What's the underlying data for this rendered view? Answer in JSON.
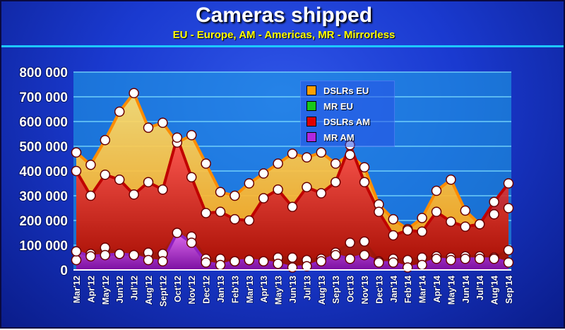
{
  "chart_data": {
    "type": "area",
    "title": "Cameras shipped",
    "subtitle": "EU - Europe, AM - Americas, MR - Mirrorless",
    "xlabel": "",
    "ylabel": "",
    "ylim": [
      0,
      800000
    ],
    "y_ticks": [
      0,
      100000,
      200000,
      300000,
      400000,
      500000,
      600000,
      700000,
      800000
    ],
    "y_tick_labels": [
      "0",
      "100 000",
      "200 000",
      "300 000",
      "400 000",
      "500 000",
      "600 000",
      "700 000",
      "800 000"
    ],
    "grid": true,
    "legend_position": "top-center",
    "categories": [
      "Mar'12",
      "Apr'12",
      "May'12",
      "Jun'12",
      "Jul'12",
      "Aug'12",
      "Sept'12",
      "Oct'12",
      "Nov'12",
      "Dec'12",
      "Jan'13",
      "Feb'13",
      "Mar'13",
      "Apr'13",
      "May'13",
      "Jun'13",
      "Jul'13",
      "Aug'13",
      "Sep'13",
      "Oct'13",
      "Nov'13",
      "Dec'13",
      "Jan'14",
      "Feb'14",
      "Mar'14",
      "Apr'14",
      "May'14",
      "Jun'14",
      "Jul'14",
      "Aug'14",
      "Sep'14"
    ],
    "series": [
      {
        "name": "DSLRs EU",
        "color": "#ffa000",
        "values": [
          475000,
          425000,
          525000,
          640000,
          715000,
          575000,
          595000,
          515000,
          545000,
          430000,
          315000,
          300000,
          350000,
          390000,
          430000,
          470000,
          455000,
          475000,
          430000,
          465000,
          415000,
          265000,
          205000,
          165000,
          210000,
          320000,
          365000,
          240000,
          185000,
          225000,
          250000
        ]
      },
      {
        "name": "MR EU",
        "color": "#18c818",
        "values": [
          40000,
          65000,
          90000,
          65000,
          60000,
          70000,
          65000,
          150000,
          135000,
          45000,
          45000,
          35000,
          40000,
          35000,
          50000,
          50000,
          40000,
          45000,
          70000,
          110000,
          115000,
          35000,
          45000,
          40000,
          50000,
          55000,
          50000,
          55000,
          55000,
          50000,
          80000
        ]
      },
      {
        "name": "DSLRs AM",
        "color": "#e00000",
        "values": [
          400000,
          300000,
          385000,
          365000,
          305000,
          355000,
          325000,
          535000,
          375000,
          230000,
          235000,
          205000,
          200000,
          290000,
          325000,
          255000,
          335000,
          310000,
          355000,
          505000,
          355000,
          235000,
          140000,
          160000,
          155000,
          235000,
          195000,
          175000,
          185000,
          275000,
          350000
        ]
      },
      {
        "name": "MR AM",
        "color": "#b028e0",
        "values": [
          75000,
          55000,
          60000,
          65000,
          60000,
          40000,
          35000,
          150000,
          110000,
          30000,
          20000,
          35000,
          40000,
          35000,
          25000,
          10000,
          15000,
          35000,
          60000,
          45000,
          60000,
          30000,
          30000,
          10000,
          20000,
          45000,
          40000,
          45000,
          45000,
          45000,
          30000
        ]
      }
    ]
  }
}
